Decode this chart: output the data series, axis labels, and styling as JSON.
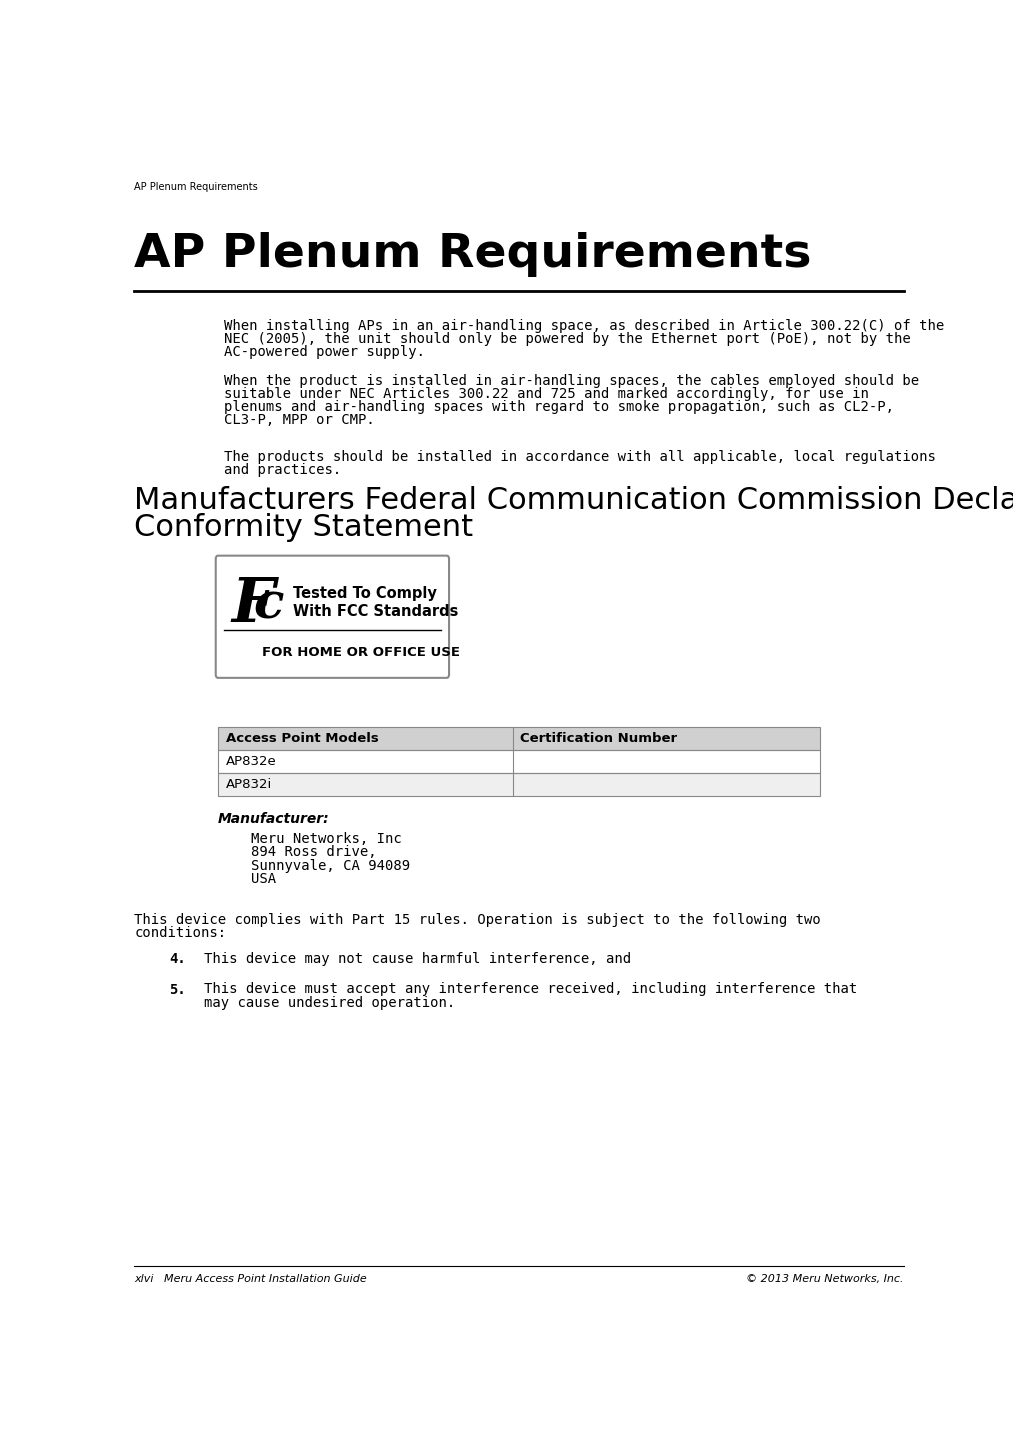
{
  "bg_color": "#ffffff",
  "header_text": "AP Plenum Requirements",
  "title": "AP Plenum Requirements",
  "para1_line1": "When installing APs in an air-handling space, as described in Article 300.22(C) of the",
  "para1_line2": "NEC (2005), the unit should only be powered by the Ethernet port (PoE), not by the",
  "para1_line3": "AC-powered power supply.",
  "para2_line1": "When the product is installed in air-handling spaces, the cables employed should be",
  "para2_line2": "suitable under NEC Articles 300.22 and 725 and marked accordingly, for use in",
  "para2_line3": "plenums and air-handling spaces with regard to smoke propagation, such as CL2-P,",
  "para2_line4": "CL3-P, MPP or CMP.",
  "para3_line1": "The products should be installed in accordance with all applicable, local regulations",
  "para3_line2": "and practices.",
  "section2_line1": "Manufacturers Federal Communication Commission Declaration of",
  "section2_line2": "Conformity Statement",
  "fcc_line1": "Tested To Comply",
  "fcc_line2": "With FCC Standards",
  "fcc_bottom": "FOR HOME OR OFFICE USE",
  "fcc_letters": "Fc",
  "table_headers": [
    "Access Point Models",
    "Certification Number"
  ],
  "table_rows": [
    [
      "AP832e",
      ""
    ],
    [
      "AP832i",
      ""
    ]
  ],
  "manufacturer_label": "Manufacturer:",
  "manufacturer_info_line1": "Meru Networks, Inc",
  "manufacturer_info_line2": "894 Ross drive,",
  "manufacturer_info_line3": "Sunnyvale, CA 94089",
  "manufacturer_info_line4": "USA",
  "compliance_line1": "This device complies with Part 15 rules. Operation is subject to the following two",
  "compliance_line2": "conditions:",
  "item4_num": "4.",
  "item4_text": "This device may not cause harmful interference, and",
  "item5_num": "5.",
  "item5_line1": "This device must accept any interference received, including interference that",
  "item5_line2": "may cause undesired operation.",
  "footer_left": "xlvi   Meru Access Point Installation Guide",
  "footer_right": "© 2013 Meru Networks, Inc.",
  "text_color": "#000000",
  "table_header_bg": "#d0d0d0",
  "table_row1_bg": "#ffffff",
  "table_row2_bg": "#efefef",
  "table_border": "#888888"
}
